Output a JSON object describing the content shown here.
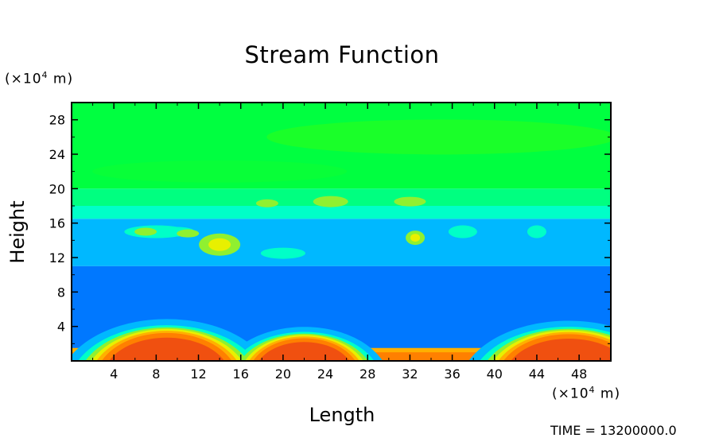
{
  "chart_data": {
    "type": "heatmap",
    "title": "Stream Function",
    "xlabel": "Length",
    "ylabel": "Height",
    "x_unit": {
      "prefix": "(×10",
      "exp": "4",
      "suffix": " m)"
    },
    "y_unit": {
      "prefix": "(×10",
      "exp": "4",
      "suffix": " m)"
    },
    "xlim": [
      0,
      51
    ],
    "ylim": [
      0,
      30
    ],
    "x_ticks": [
      "4",
      "8",
      "12",
      "16",
      "20",
      "24",
      "28",
      "32",
      "36",
      "40",
      "44",
      "48"
    ],
    "y_ticks": [
      "4",
      "8",
      "12",
      "16",
      "20",
      "24",
      "28"
    ],
    "color_levels": [
      "#e84010",
      "#ff7a00",
      "#ffb000",
      "#f0f000",
      "#a0ff30",
      "#00ff60",
      "#00ffd0",
      "#00c8ff",
      "#0098ff",
      "#0060ff"
    ],
    "features": {
      "lower_humps": [
        {
          "x": 9,
          "height": 4.8
        },
        {
          "x": 22,
          "height": 3.9
        },
        {
          "x": 47,
          "height": 4.6
        }
      ],
      "upper_band_heights": [
        17.5,
        20.5
      ]
    },
    "timestamp": "TIME = 13200000.0"
  }
}
